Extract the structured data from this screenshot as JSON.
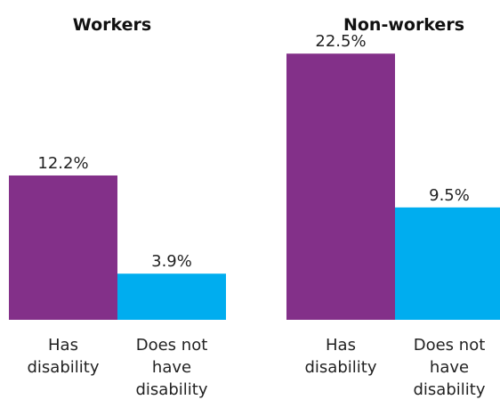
{
  "chart_data": [
    {
      "type": "bar",
      "title": "Workers",
      "categories": [
        "Has disability",
        "Does not have disability"
      ],
      "values": [
        12.2,
        3.9
      ],
      "value_labels": [
        "12.2%",
        "3.9%"
      ],
      "category_label_lines": [
        [
          "Has",
          "disability"
        ],
        [
          "Does not",
          "have",
          "disability"
        ]
      ],
      "colors": [
        "#833089",
        "#00adef"
      ],
      "ylim": [
        0,
        25
      ],
      "grid": false
    },
    {
      "type": "bar",
      "title": "Non-workers",
      "categories": [
        "Has disability",
        "Does not have disability"
      ],
      "values": [
        22.5,
        9.5
      ],
      "value_labels": [
        "22.5%",
        "9.5%"
      ],
      "category_label_lines": [
        [
          "Has",
          "disability"
        ],
        [
          "Does not",
          "have",
          "disability"
        ]
      ],
      "colors": [
        "#833089",
        "#00adef"
      ],
      "ylim": [
        0,
        25
      ],
      "grid": false
    }
  ]
}
